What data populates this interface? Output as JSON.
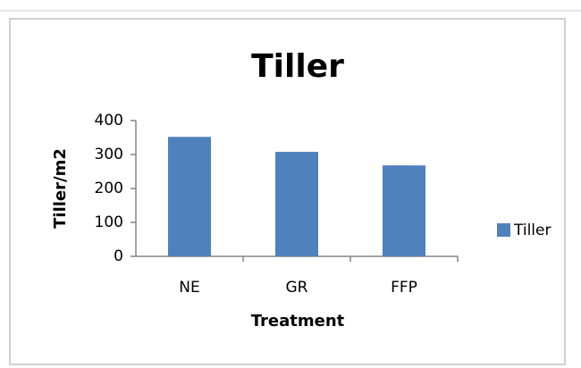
{
  "chart_data": {
    "type": "bar",
    "title": "Tiller",
    "x_label": "Treatment",
    "y_label": "Tiller/m2",
    "categories": [
      "NE",
      "GR",
      "FFP"
    ],
    "series": [
      {
        "name": "Tiller",
        "color": "#4f81bd",
        "values": [
          352,
          308,
          268
        ]
      }
    ],
    "ylim": [
      0,
      400
    ],
    "yticks": [
      0,
      100,
      200,
      300,
      400
    ],
    "grid": false,
    "legend": "right"
  }
}
